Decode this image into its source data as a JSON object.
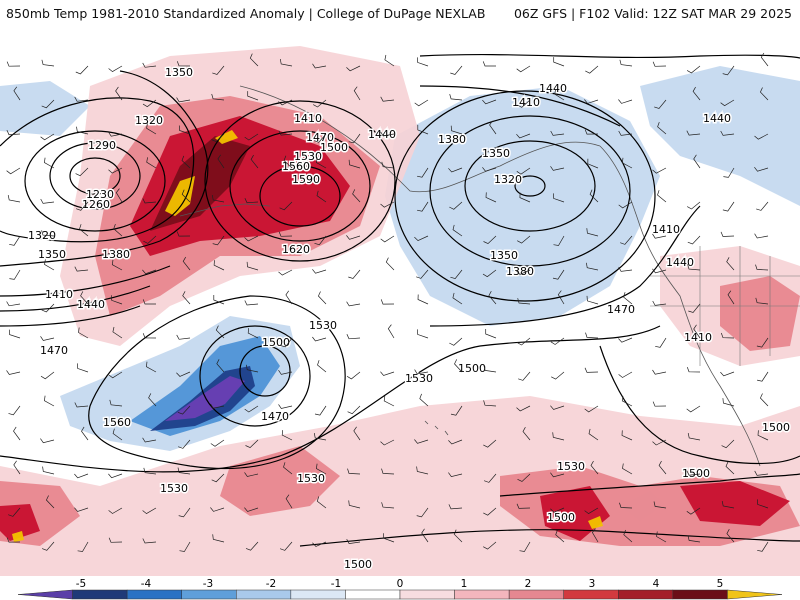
{
  "header": {
    "left_title": "850mb Temp 1981-2010 Standardized Anomaly | College of DuPage NEXLAB",
    "right_title": "06Z GFS | F102 Valid: 12Z SAT MAR 29 2025"
  },
  "legend": {
    "ticks": [
      "-5",
      "-4",
      "-3",
      "-2",
      "-1",
      "0",
      "1",
      "2",
      "3",
      "4",
      "5"
    ],
    "colors": [
      "#5b3fa8",
      "#1f3a78",
      "#2a72c4",
      "#5f9fda",
      "#a9c9eb",
      "#dce8f5",
      "#ffffff",
      "#f7dde0",
      "#f3b6bd",
      "#e58791",
      "#d23a3f",
      "#a41e29",
      "#6b0e17",
      "#f0c419"
    ]
  },
  "map_colors": {
    "strong_warm": "#c8102e",
    "warm": "#e8878f",
    "light_warm": "#f6d1d5",
    "dark_warm": "#7a0d1a",
    "extreme_warm": "#f2c200",
    "cool": "#c5d9ef",
    "medium_cool": "#4f93d6",
    "dark_cool": "#1f3f8a",
    "extreme_cool": "#6a3fb4",
    "contour": "#000000"
  },
  "contour_labels": [
    "1350",
    "1320",
    "1290",
    "1260",
    "1230",
    "1320",
    "1350",
    "1380",
    "1410",
    "1440",
    "1470",
    "1410",
    "1470",
    "1500",
    "1530",
    "1560",
    "1590",
    "1620",
    "1440",
    "1410",
    "1380",
    "1350",
    "1320",
    "1350",
    "1380",
    "1440",
    "1410",
    "1440",
    "1470",
    "1410",
    "1530",
    "1500",
    "1530",
    "1500",
    "1560",
    "1470",
    "1530",
    "1530",
    "1530",
    "1500",
    "1500",
    "1500",
    "1500",
    "1440"
  ]
}
